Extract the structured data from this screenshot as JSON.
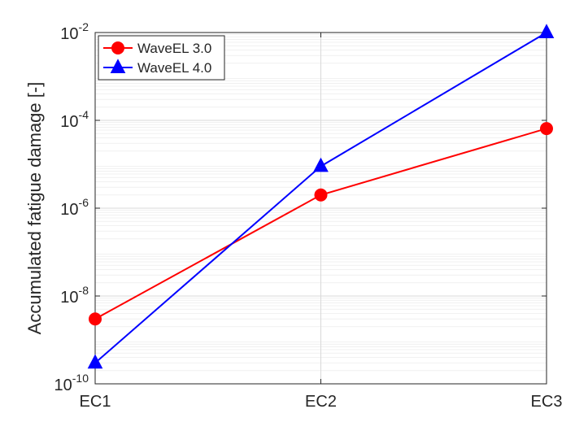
{
  "chart_data": {
    "type": "line",
    "categories": [
      "EC1",
      "EC2",
      "EC3"
    ],
    "ylabel": "Accumulated fatigue damage [-]",
    "yscale": "log",
    "ylim": [
      1e-10,
      0.01
    ],
    "yticks": [
      {
        "value": 1e-10,
        "base": "10",
        "exp": "-10"
      },
      {
        "value": 1e-08,
        "base": "10",
        "exp": "-8"
      },
      {
        "value": 1e-06,
        "base": "10",
        "exp": "-6"
      },
      {
        "value": 0.0001,
        "base": "10",
        "exp": "-4"
      },
      {
        "value": 0.01,
        "base": "10",
        "exp": "-2"
      }
    ],
    "grid": true,
    "legend": "top-left",
    "series": [
      {
        "name": "WaveEL 3.0",
        "values": [
          3e-09,
          2e-06,
          6.5e-05
        ],
        "color": "#ff0000",
        "marker": "circle"
      },
      {
        "name": "WaveEL 4.0",
        "values": [
          3e-10,
          9e-06,
          0.01
        ],
        "color": "#0000ff",
        "marker": "triangle"
      }
    ]
  }
}
